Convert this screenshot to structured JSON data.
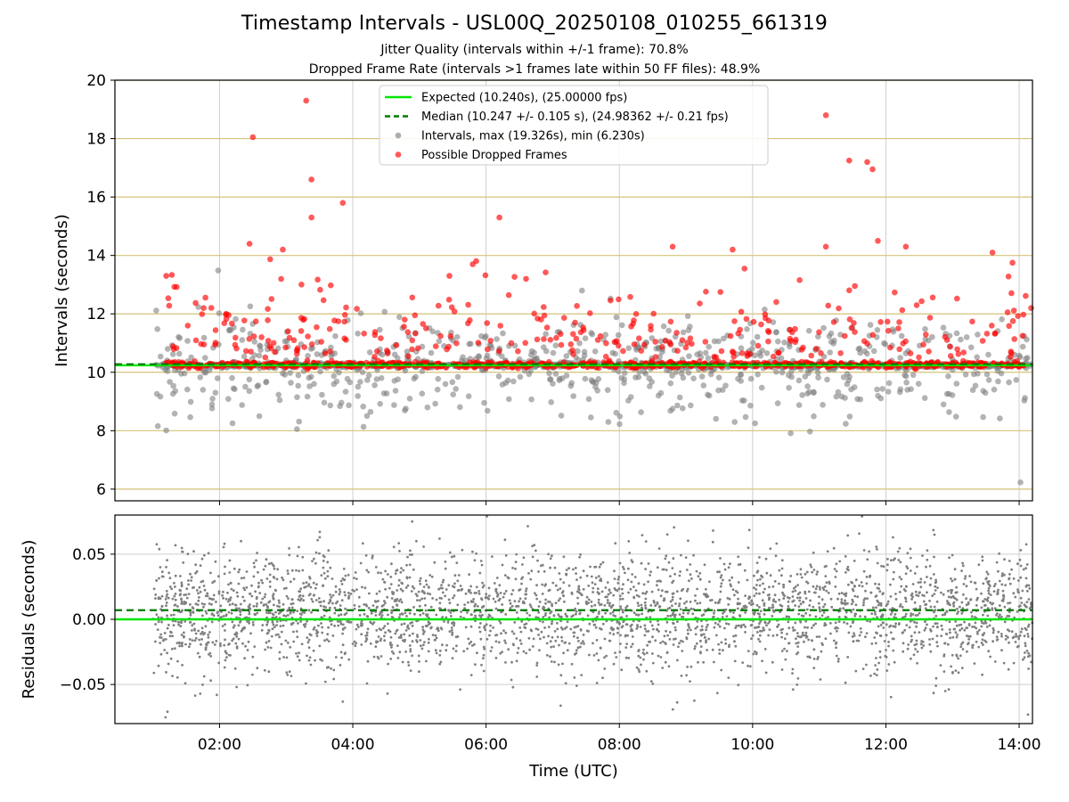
{
  "header": {
    "title": "Timestamp Intervals - USL00Q_20250108_010255_661319",
    "subtitle_1": "Jitter Quality (intervals within +/-1 frame): 70.8%",
    "subtitle_2": "Dropped Frame Rate (intervals >1 frames late within 50 FF files): 48.9%"
  },
  "chart_data": [
    {
      "type": "scatter",
      "panel": "top",
      "title": "Timestamp Intervals - USL00Q_20250108_010255_661319",
      "xlabel": "Time (UTC)",
      "ylabel": "Intervals (seconds)",
      "xlim_hours": [
        0.43,
        14.2
      ],
      "ylim": [
        5.6,
        20
      ],
      "yticks": [
        6,
        8,
        10,
        12,
        14,
        16,
        18,
        20
      ],
      "xticks": [
        "02:00",
        "04:00",
        "06:00",
        "08:00",
        "10:00",
        "12:00",
        "14:00"
      ],
      "xtick_hours": [
        2,
        4,
        6,
        8,
        10,
        12,
        14
      ],
      "grid": true,
      "legend_placement": "top-center",
      "lines": [
        {
          "name": "Expected (10.240s), (25.00000 fps)",
          "y": 10.24,
          "color": "#00e600",
          "style": "solid"
        },
        {
          "name": "Median (10.247 +/- 0.105 s), (24.98362 +/- 0.21 fps)",
          "y": 10.247,
          "color": "#007a00",
          "style": "dashed"
        }
      ],
      "series": [
        {
          "name": "Intervals, max (19.326s), min (6.230s)",
          "color": "#808080",
          "max": 19.326,
          "min": 6.23
        },
        {
          "name": "Possible Dropped Frames",
          "color": "#ff0000"
        }
      ],
      "highlighted_points": [
        {
          "x_hour": 1.2,
          "y": 13.3
        },
        {
          "x_hour": 2.1,
          "y": 12.0
        },
        {
          "x_hour": 2.5,
          "y": 18.05
        },
        {
          "x_hour": 2.45,
          "y": 14.4
        },
        {
          "x_hour": 2.95,
          "y": 14.2
        },
        {
          "x_hour": 3.3,
          "y": 19.3
        },
        {
          "x_hour": 3.38,
          "y": 16.6
        },
        {
          "x_hour": 3.38,
          "y": 15.3
        },
        {
          "x_hour": 3.85,
          "y": 15.8
        },
        {
          "x_hour": 5.45,
          "y": 13.3
        },
        {
          "x_hour": 5.8,
          "y": 13.7
        },
        {
          "x_hour": 6.2,
          "y": 15.3
        },
        {
          "x_hour": 6.6,
          "y": 13.2
        },
        {
          "x_hour": 8.8,
          "y": 14.3
        },
        {
          "x_hour": 9.7,
          "y": 14.2
        },
        {
          "x_hour": 11.1,
          "y": 18.8
        },
        {
          "x_hour": 11.1,
          "y": 14.3
        },
        {
          "x_hour": 11.45,
          "y": 17.25
        },
        {
          "x_hour": 11.72,
          "y": 17.2
        },
        {
          "x_hour": 11.8,
          "y": 16.95
        },
        {
          "x_hour": 11.88,
          "y": 14.5
        },
        {
          "x_hour": 12.3,
          "y": 14.3
        },
        {
          "x_hour": 13.6,
          "y": 14.1
        },
        {
          "x_hour": 13.9,
          "y": 13.75
        },
        {
          "x_hour": 14.18,
          "y": 12.2
        }
      ],
      "outlier_points": [
        {
          "x_hour": 14.02,
          "y": 6.23
        }
      ]
    },
    {
      "type": "scatter",
      "panel": "bottom",
      "xlabel": "Time (UTC)",
      "ylabel": "Residuals (seconds)",
      "ylim": [
        -0.08,
        0.08
      ],
      "yticks": [
        0.05,
        0.0,
        -0.05
      ],
      "ytick_labels": [
        "0.05",
        "0.00",
        "−0.05"
      ],
      "grid": true,
      "lines": [
        {
          "y": 0.0,
          "color": "#00e600",
          "style": "solid"
        },
        {
          "y": 0.007,
          "color": "#007a00",
          "style": "dashed"
        }
      ],
      "series": [
        {
          "color": "#808080",
          "x_range_hours": [
            1.0,
            14.2
          ],
          "spread": 0.03
        }
      ]
    }
  ],
  "legend": {
    "expected": "Expected (10.240s), (25.00000 fps)",
    "median": "Median (10.247 +/- 0.105 s), (24.98362 +/- 0.21 fps)",
    "intervals": "Intervals, max (19.326s), min (6.230s)",
    "dropped": "Possible Dropped Frames"
  },
  "colors": {
    "expected": "#00e600",
    "median": "#007a00",
    "intervals": "#808080",
    "dropped": "#ff0000",
    "hgrid_top": "#d4c27a",
    "grid": "#cfcfcf"
  }
}
